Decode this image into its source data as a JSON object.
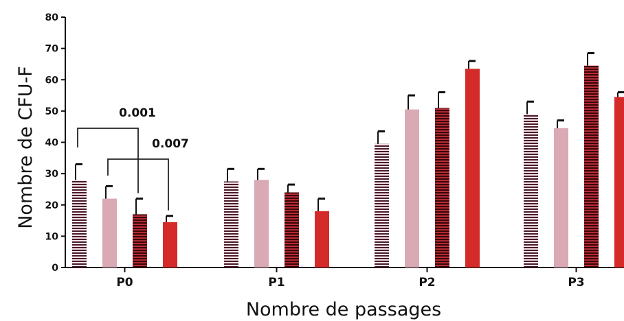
{
  "chart_data": {
    "type": "bar",
    "title": "",
    "xlabel": "Nombre de passages",
    "ylabel": "Nombre de CFU-F",
    "ylim": [
      0,
      80
    ],
    "yticks": [
      0,
      10,
      20,
      30,
      40,
      50,
      60,
      70,
      80
    ],
    "categories": [
      "P0",
      "P1",
      "P2",
      "P3"
    ],
    "series": [
      {
        "values": [
          28,
          27.5,
          39.5,
          49
        ],
        "errors": [
          5,
          4,
          4,
          4
        ],
        "color": "#4a1a28",
        "pattern": "stripes-light"
      },
      {
        "values": [
          22,
          28,
          50.5,
          44.5
        ],
        "errors": [
          4,
          3.5,
          4.5,
          2.5
        ],
        "color": "#d9a9b4",
        "pattern": "solid"
      },
      {
        "values": [
          17,
          24,
          51,
          64.5
        ],
        "errors": [
          5,
          2.5,
          5,
          4
        ],
        "color": "#5a0a10",
        "pattern": "stripes-dark"
      },
      {
        "values": [
          14.5,
          18,
          63.5,
          54.5
        ],
        "errors": [
          2,
          4,
          2.5,
          1.5
        ],
        "color": "#d42a2a",
        "pattern": "solid"
      }
    ],
    "annotations": [
      {
        "label": "0.001",
        "category": "P0",
        "from_series": 0,
        "to_series": 2
      },
      {
        "label": "0.007",
        "category": "P0",
        "from_series": 1,
        "to_series": 3
      }
    ],
    "grid": false,
    "legend": false
  }
}
